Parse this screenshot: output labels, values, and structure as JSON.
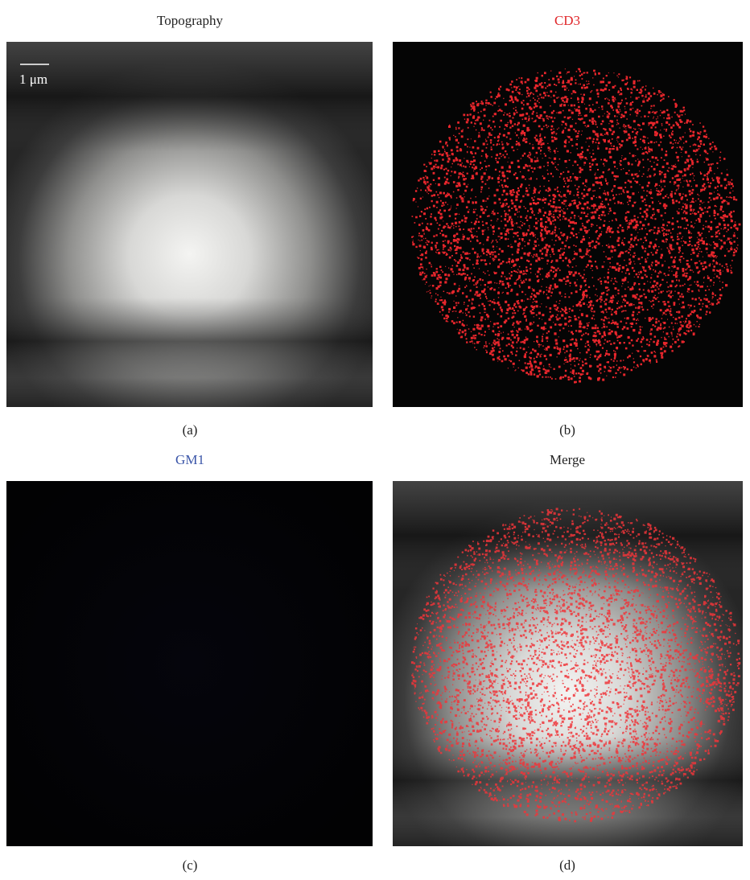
{
  "figure": {
    "panels": [
      {
        "title": "Topography",
        "label": "(a)",
        "scale_bar": "1 μm"
      },
      {
        "title": "CD3",
        "label": "(b)"
      },
      {
        "title": "GM1",
        "label": "(c)"
      },
      {
        "title": "Merge",
        "label": "(d)"
      }
    ]
  }
}
